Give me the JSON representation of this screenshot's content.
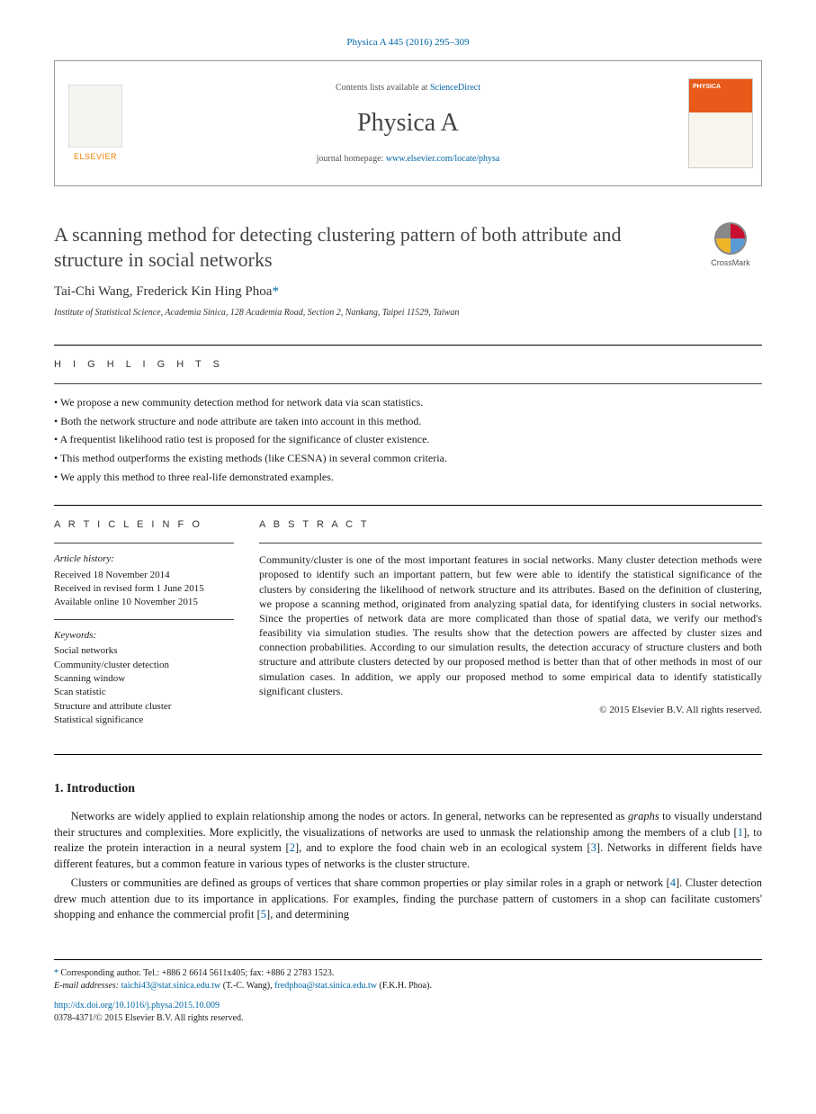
{
  "citation": "Physica A 445 (2016) 295–309",
  "header": {
    "contents_prefix": "Contents lists available at ",
    "contents_link": "ScienceDirect",
    "journal": "Physica A",
    "homepage_prefix": "journal homepage: ",
    "homepage_url": "www.elsevier.com/locate/physa",
    "publisher": "ELSEVIER"
  },
  "crossmark": "CrossMark",
  "title": "A scanning method for detecting clustering pattern of both attribute and structure in social networks",
  "authors": "Tai-Chi Wang, Frederick Kin Hing Phoa",
  "corr_mark": "*",
  "affiliation": "Institute of Statistical Science, Academia Sinica, 128 Academia Road, Section 2, Nankang, Taipei 11529, Taiwan",
  "highlights_label": "H I G H L I G H T S",
  "highlights": [
    "We propose a new community detection method for network data via scan statistics.",
    "Both the network structure and node attribute are taken into account in this method.",
    "A frequentist likelihood ratio test is proposed for the significance of cluster existence.",
    "This method outperforms the existing methods (like CESNA) in several common criteria.",
    "We apply this method to three real-life demonstrated examples."
  ],
  "info_label": "A R T I C L E   I N F O",
  "abstract_label": "A B S T R A C T",
  "article_info": {
    "history_heading": "Article history:",
    "received": "Received 18 November 2014",
    "revised": "Received in revised form 1 June 2015",
    "online": "Available online 10 November 2015",
    "keywords_heading": "Keywords:",
    "keywords": [
      "Social networks",
      "Community/cluster detection",
      "Scanning window",
      "Scan statistic",
      "Structure and attribute cluster",
      "Statistical significance"
    ]
  },
  "abstract": "Community/cluster is one of the most important features in social networks. Many cluster detection methods were proposed to identify such an important pattern, but few were able to identify the statistical significance of the clusters by considering the likelihood of network structure and its attributes. Based on the definition of clustering, we propose a scanning method, originated from analyzing spatial data, for identifying clusters in social networks. Since the properties of network data are more complicated than those of spatial data, we verify our method's feasibility via simulation studies. The results show that the detection powers are affected by cluster sizes and connection probabilities. According to our simulation results, the detection accuracy of structure clusters and both structure and attribute clusters detected by our proposed method is better than that of other methods in most of our simulation cases. In addition, we apply our proposed method to some empirical data to identify statistically significant clusters.",
  "copyright": "© 2015 Elsevier B.V. All rights reserved.",
  "intro_heading": "1. Introduction",
  "para1_pre": "Networks are widely applied to explain relationship among the nodes or actors. In general, networks can be represented as ",
  "para1_graphs": "graphs",
  "para1_mid1": " to visually understand their structures and complexities. More explicitly, the visualizations of networks are used to unmask the relationship among the members of a club [",
  "para1_r1": "1",
  "para1_mid2": "], to realize the protein interaction in a neural system [",
  "para1_r2": "2",
  "para1_mid3": "], and to explore the food chain web in an ecological system [",
  "para1_r3": "3",
  "para1_end": "]. Networks in different fields have different features, but a common feature in various types of networks is the cluster structure.",
  "para2_pre": "Clusters or communities are defined as groups of vertices that share common properties or play similar roles in a graph or network [",
  "para2_r4": "4",
  "para2_mid": "]. Cluster detection drew much attention due to its importance in applications. For examples, finding the purchase pattern of customers in a shop can facilitate customers' shopping and enhance the commercial profit [",
  "para2_r5": "5",
  "para2_end": "], and determining",
  "footer": {
    "corr": "Corresponding author. Tel.: +886 2 6614 5611x405; fax: +886 2 2783 1523.",
    "email_label": "E-mail addresses: ",
    "email1": "taichi43@stat.sinica.edu.tw",
    "email1_name": " (T.-C. Wang), ",
    "email2": "fredphoa@stat.sinica.edu.tw",
    "email2_name": " (F.K.H. Phoa).",
    "doi": "http://dx.doi.org/10.1016/j.physa.2015.10.009",
    "issn": "0378-4371/© 2015 Elsevier B.V. All rights reserved."
  }
}
